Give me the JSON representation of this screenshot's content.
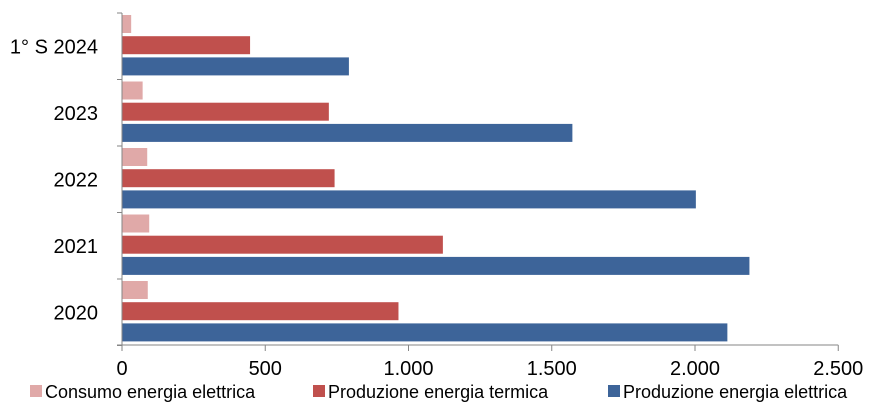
{
  "chart_data": {
    "type": "bar",
    "orientation": "horizontal",
    "title": "",
    "categories": [
      "1° S 2024",
      "2023",
      "2022",
      "2021",
      "2020"
    ],
    "series": [
      {
        "name": "Consumo energia elettrica",
        "color": "#e0a9a8",
        "values": [
          32,
          72,
          88,
          95,
          90
        ]
      },
      {
        "name": "Produzione energia termica",
        "color": "#c0504d",
        "values": [
          447,
          722,
          742,
          1120,
          965
        ]
      },
      {
        "name": "Produzione energia elettrica",
        "color": "#3d6499",
        "values": [
          792,
          1572,
          2003,
          2190,
          2113
        ]
      }
    ],
    "x_ticks": [
      "0",
      "500",
      "1.000",
      "1.500",
      "2.000",
      "2.500"
    ],
    "x_tick_values": [
      0,
      500,
      1000,
      1500,
      2000,
      2500
    ],
    "xlim": [
      0,
      2500
    ],
    "xlabel": "",
    "ylabel": "",
    "grid": false,
    "legend_position": "bottom"
  }
}
